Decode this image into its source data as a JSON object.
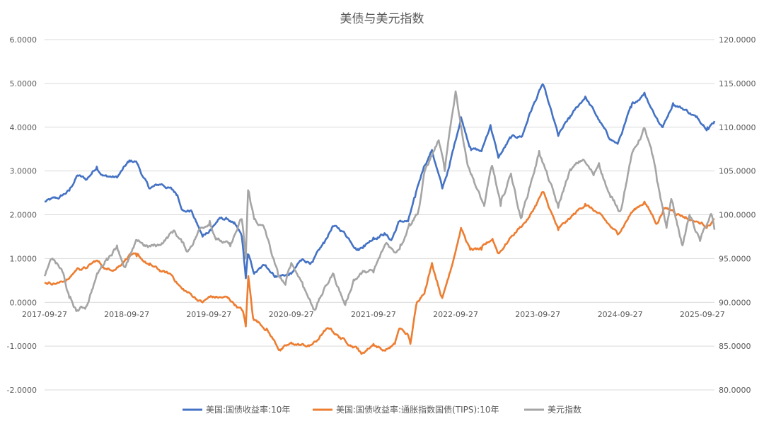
{
  "chart_data": {
    "type": "line",
    "title": "美债与美元指数",
    "xlabel": "",
    "ylabel": "",
    "x_tick_labels": [
      "2017-09-27",
      "2018-09-27",
      "2019-09-27",
      "2020-09-27",
      "2021-09-27",
      "2022-09-27",
      "2023-09-27",
      "2024-09-27",
      "2025-09-27"
    ],
    "y_left": {
      "ticks": [
        "6.0000",
        "5.0000",
        "4.0000",
        "3.0000",
        "2.0000",
        "1.0000",
        "0.0000",
        "-1.0000",
        "-2.0000"
      ],
      "range": [
        -2,
        6
      ]
    },
    "y_right": {
      "ticks": [
        "120.0000",
        "115.0000",
        "110.0000",
        "105.0000",
        "100.0000",
        "95.0000",
        "90.0000",
        "85.0000",
        "80.0000"
      ],
      "range": [
        80,
        120
      ]
    },
    "x_range": [
      "2017-09-27",
      "2025-11-20"
    ],
    "grid": true,
    "legend_position": "bottom",
    "series": [
      {
        "name": "美国:国债收益率:10年",
        "axis": "left",
        "color": "#4472C4",
        "points": [
          [
            "2017-09-27",
            2.3
          ],
          [
            "2017-12-01",
            2.38
          ],
          [
            "2018-01-15",
            2.55
          ],
          [
            "2018-02-20",
            2.9
          ],
          [
            "2018-04-01",
            2.8
          ],
          [
            "2018-05-17",
            3.1
          ],
          [
            "2018-06-15",
            2.9
          ],
          [
            "2018-08-15",
            2.85
          ],
          [
            "2018-10-05",
            3.2
          ],
          [
            "2018-11-08",
            3.22
          ],
          [
            "2018-12-10",
            2.85
          ],
          [
            "2019-01-05",
            2.6
          ],
          [
            "2019-03-01",
            2.7
          ],
          [
            "2019-04-15",
            2.58
          ],
          [
            "2019-05-10",
            2.45
          ],
          [
            "2019-06-05",
            2.1
          ],
          [
            "2019-07-10",
            2.1
          ],
          [
            "2019-08-30",
            1.5
          ],
          [
            "2019-10-01",
            1.65
          ],
          [
            "2019-11-10",
            1.9
          ],
          [
            "2019-12-20",
            1.9
          ],
          [
            "2020-01-15",
            1.8
          ],
          [
            "2020-02-20",
            1.5
          ],
          [
            "2020-03-09",
            0.55
          ],
          [
            "2020-03-18",
            1.1
          ],
          [
            "2020-04-15",
            0.65
          ],
          [
            "2020-06-05",
            0.85
          ],
          [
            "2020-07-20",
            0.6
          ],
          [
            "2020-09-27",
            0.65
          ],
          [
            "2020-11-10",
            0.95
          ],
          [
            "2020-12-31",
            0.92
          ],
          [
            "2021-02-20",
            1.35
          ],
          [
            "2021-03-30",
            1.74
          ],
          [
            "2021-05-15",
            1.62
          ],
          [
            "2021-07-20",
            1.22
          ],
          [
            "2021-08-15",
            1.3
          ],
          [
            "2021-09-27",
            1.48
          ],
          [
            "2021-11-15",
            1.58
          ],
          [
            "2021-12-15",
            1.42
          ],
          [
            "2022-01-20",
            1.85
          ],
          [
            "2022-02-28",
            1.85
          ],
          [
            "2022-03-31",
            2.4
          ],
          [
            "2022-05-09",
            3.1
          ],
          [
            "2022-06-14",
            3.48
          ],
          [
            "2022-07-30",
            2.6
          ],
          [
            "2022-08-30",
            3.1
          ],
          [
            "2022-10-21",
            4.23
          ],
          [
            "2022-12-01",
            3.55
          ],
          [
            "2023-01-20",
            3.45
          ],
          [
            "2023-03-01",
            4.05
          ],
          [
            "2023-04-05",
            3.3
          ],
          [
            "2023-05-30",
            3.75
          ],
          [
            "2023-07-20",
            3.8
          ],
          [
            "2023-08-21",
            4.3
          ],
          [
            "2023-10-19",
            4.98
          ],
          [
            "2023-12-27",
            3.8
          ],
          [
            "2024-02-15",
            4.2
          ],
          [
            "2024-04-25",
            4.7
          ],
          [
            "2024-06-15",
            4.25
          ],
          [
            "2024-08-05",
            3.78
          ],
          [
            "2024-09-16",
            3.62
          ],
          [
            "2024-11-15",
            4.45
          ],
          [
            "2025-01-13",
            4.79
          ],
          [
            "2025-03-10",
            4.2
          ],
          [
            "2025-04-04",
            4.0
          ],
          [
            "2025-05-20",
            4.55
          ],
          [
            "2025-07-15",
            4.4
          ],
          [
            "2025-08-30",
            4.23
          ],
          [
            "2025-10-20",
            4.0
          ],
          [
            "2025-11-20",
            4.14
          ]
        ]
      },
      {
        "name": "美国:国债收益率:通胀指数国债(TIPS):10年",
        "axis": "left",
        "color": "#ED7D31",
        "points": [
          [
            "2017-09-27",
            0.45
          ],
          [
            "2017-12-01",
            0.45
          ],
          [
            "2018-01-15",
            0.55
          ],
          [
            "2018-02-20",
            0.78
          ],
          [
            "2018-04-01",
            0.78
          ],
          [
            "2018-05-15",
            0.95
          ],
          [
            "2018-07-01",
            0.75
          ],
          [
            "2018-08-15",
            0.8
          ],
          [
            "2018-10-10",
            1.1
          ],
          [
            "2018-11-10",
            1.05
          ],
          [
            "2019-01-05",
            0.85
          ],
          [
            "2019-03-01",
            0.7
          ],
          [
            "2019-04-15",
            0.62
          ],
          [
            "2019-06-01",
            0.3
          ],
          [
            "2019-08-30",
            0.0
          ],
          [
            "2019-10-01",
            0.12
          ],
          [
            "2019-12-20",
            0.1
          ],
          [
            "2020-02-25",
            -0.2
          ],
          [
            "2020-03-09",
            -0.55
          ],
          [
            "2020-03-20",
            0.6
          ],
          [
            "2020-04-10",
            -0.35
          ],
          [
            "2020-06-10",
            -0.6
          ],
          [
            "2020-08-06",
            -1.08
          ],
          [
            "2020-10-01",
            -0.95
          ],
          [
            "2020-12-15",
            -1.0
          ],
          [
            "2021-01-15",
            -0.9
          ],
          [
            "2021-02-15",
            -0.7
          ],
          [
            "2021-03-18",
            -0.6
          ],
          [
            "2021-05-01",
            -0.8
          ],
          [
            "2021-07-20",
            -1.05
          ],
          [
            "2021-08-05",
            -1.18
          ],
          [
            "2021-09-27",
            -0.95
          ],
          [
            "2021-11-15",
            -1.1
          ],
          [
            "2021-12-31",
            -0.95
          ],
          [
            "2022-01-20",
            -0.6
          ],
          [
            "2022-02-28",
            -0.75
          ],
          [
            "2022-03-10",
            -0.95
          ],
          [
            "2022-04-08",
            0.0
          ],
          [
            "2022-05-15",
            0.3
          ],
          [
            "2022-06-14",
            0.9
          ],
          [
            "2022-07-30",
            0.1
          ],
          [
            "2022-08-30",
            0.65
          ],
          [
            "2022-10-21",
            1.7
          ],
          [
            "2022-12-01",
            1.2
          ],
          [
            "2023-01-20",
            1.2
          ],
          [
            "2023-03-10",
            1.45
          ],
          [
            "2023-04-05",
            1.12
          ],
          [
            "2023-06-01",
            1.5
          ],
          [
            "2023-08-21",
            1.95
          ],
          [
            "2023-10-19",
            2.52
          ],
          [
            "2023-12-27",
            1.65
          ],
          [
            "2024-02-15",
            1.9
          ],
          [
            "2024-04-25",
            2.25
          ],
          [
            "2024-06-15",
            2.05
          ],
          [
            "2024-09-16",
            1.55
          ],
          [
            "2024-11-15",
            2.05
          ],
          [
            "2025-01-13",
            2.3
          ],
          [
            "2025-03-10",
            1.8
          ],
          [
            "2025-04-09",
            2.15
          ],
          [
            "2025-05-20",
            2.1
          ],
          [
            "2025-07-15",
            1.95
          ],
          [
            "2025-08-30",
            1.85
          ],
          [
            "2025-10-20",
            1.75
          ],
          [
            "2025-11-20",
            1.9
          ]
        ]
      },
      {
        "name": "美元指数",
        "axis": "right",
        "color": "#A5A5A5",
        "points": [
          [
            "2017-09-27",
            93.0
          ],
          [
            "2017-11-01",
            95.0
          ],
          [
            "2017-12-15",
            93.5
          ],
          [
            "2018-01-15",
            90.5
          ],
          [
            "2018-02-15",
            89.0
          ],
          [
            "2018-03-30",
            89.5
          ],
          [
            "2018-05-15",
            93.0
          ],
          [
            "2018-06-30",
            95.0
          ],
          [
            "2018-08-15",
            96.5
          ],
          [
            "2018-09-20",
            94.0
          ],
          [
            "2018-11-15",
            97.0
          ],
          [
            "2018-12-30",
            96.3
          ],
          [
            "2019-02-15",
            96.5
          ],
          [
            "2019-04-26",
            98.2
          ],
          [
            "2019-06-25",
            95.8
          ],
          [
            "2019-08-15",
            98.3
          ],
          [
            "2019-10-01",
            99.3
          ],
          [
            "2019-11-01",
            97.3
          ],
          [
            "2019-12-31",
            96.4
          ],
          [
            "2020-02-20",
            99.5
          ],
          [
            "2020-03-09",
            95.0
          ],
          [
            "2020-03-19",
            102.8
          ],
          [
            "2020-04-15",
            99.5
          ],
          [
            "2020-05-31",
            98.4
          ],
          [
            "2020-07-31",
            93.0
          ],
          [
            "2020-09-01",
            92.0
          ],
          [
            "2020-09-27",
            94.5
          ],
          [
            "2020-11-15",
            92.3
          ],
          [
            "2020-12-31",
            89.5
          ],
          [
            "2021-01-06",
            89.2
          ],
          [
            "2021-03-31",
            93.3
          ],
          [
            "2021-05-25",
            89.7
          ],
          [
            "2021-07-01",
            92.6
          ],
          [
            "2021-08-15",
            93.5
          ],
          [
            "2021-09-27",
            93.4
          ],
          [
            "2021-11-24",
            96.8
          ],
          [
            "2021-12-31",
            95.7
          ],
          [
            "2022-01-25",
            96.6
          ],
          [
            "2022-03-05",
            99.0
          ],
          [
            "2022-04-15",
            100.5
          ],
          [
            "2022-05-13",
            105.0
          ],
          [
            "2022-07-14",
            108.5
          ],
          [
            "2022-08-10",
            105.0
          ],
          [
            "2022-09-27",
            114.1
          ],
          [
            "2022-11-15",
            106.3
          ],
          [
            "2023-01-15",
            102.0
          ],
          [
            "2023-02-01",
            101.0
          ],
          [
            "2023-03-08",
            105.6
          ],
          [
            "2023-04-15",
            101.0
          ],
          [
            "2023-05-31",
            104.7
          ],
          [
            "2023-07-14",
            99.6
          ],
          [
            "2023-09-30",
            106.8
          ],
          [
            "2023-10-03",
            107.3
          ],
          [
            "2023-12-27",
            100.8
          ],
          [
            "2024-02-14",
            104.9
          ],
          [
            "2024-04-16",
            106.3
          ],
          [
            "2024-06-01",
            104.5
          ],
          [
            "2024-06-25",
            105.9
          ],
          [
            "2024-08-15",
            102.0
          ],
          [
            "2024-09-27",
            100.4
          ],
          [
            "2024-11-15",
            106.6
          ],
          [
            "2025-01-13",
            109.9
          ],
          [
            "2025-02-15",
            107.0
          ],
          [
            "2025-03-10",
            103.8
          ],
          [
            "2025-04-21",
            98.5
          ],
          [
            "2025-05-12",
            101.8
          ],
          [
            "2025-07-01",
            96.5
          ],
          [
            "2025-08-01",
            100.0
          ],
          [
            "2025-09-17",
            97.0
          ],
          [
            "2025-11-05",
            100.1
          ],
          [
            "2025-11-20",
            98.3
          ]
        ]
      }
    ]
  }
}
